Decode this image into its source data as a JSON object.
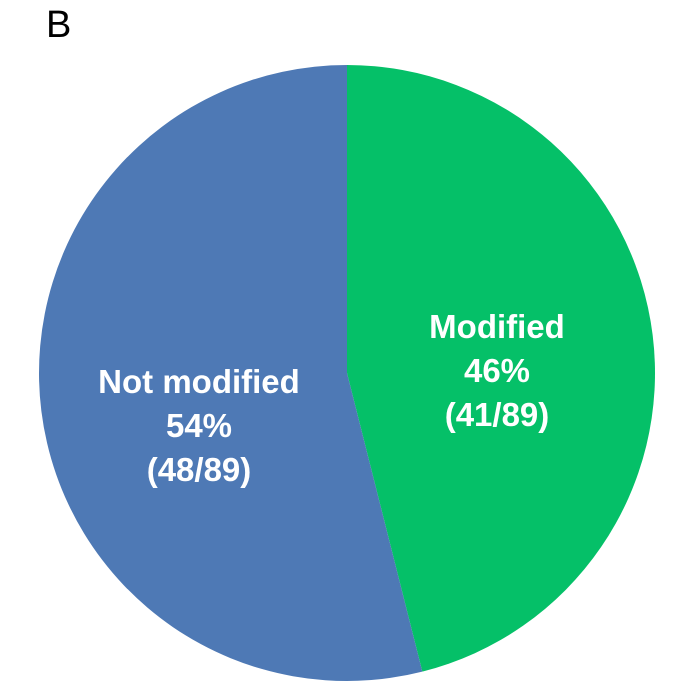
{
  "panel_label": "B",
  "colors": {
    "modified": "#05C068",
    "not_modified": "#4E79B5",
    "label_text": "#FFFFFF"
  },
  "chart_data": {
    "type": "pie",
    "start_angle_deg": 0,
    "direction": "clockwise",
    "slices": [
      {
        "label": "Modified",
        "percent_label": "46%",
        "fraction_label": "(41/89)",
        "value": 41,
        "color": "#05C068"
      },
      {
        "label": "Not modified",
        "percent_label": "54%",
        "fraction_label": "(48/89)",
        "value": 48,
        "color": "#4E79B5"
      }
    ],
    "total": 89
  }
}
